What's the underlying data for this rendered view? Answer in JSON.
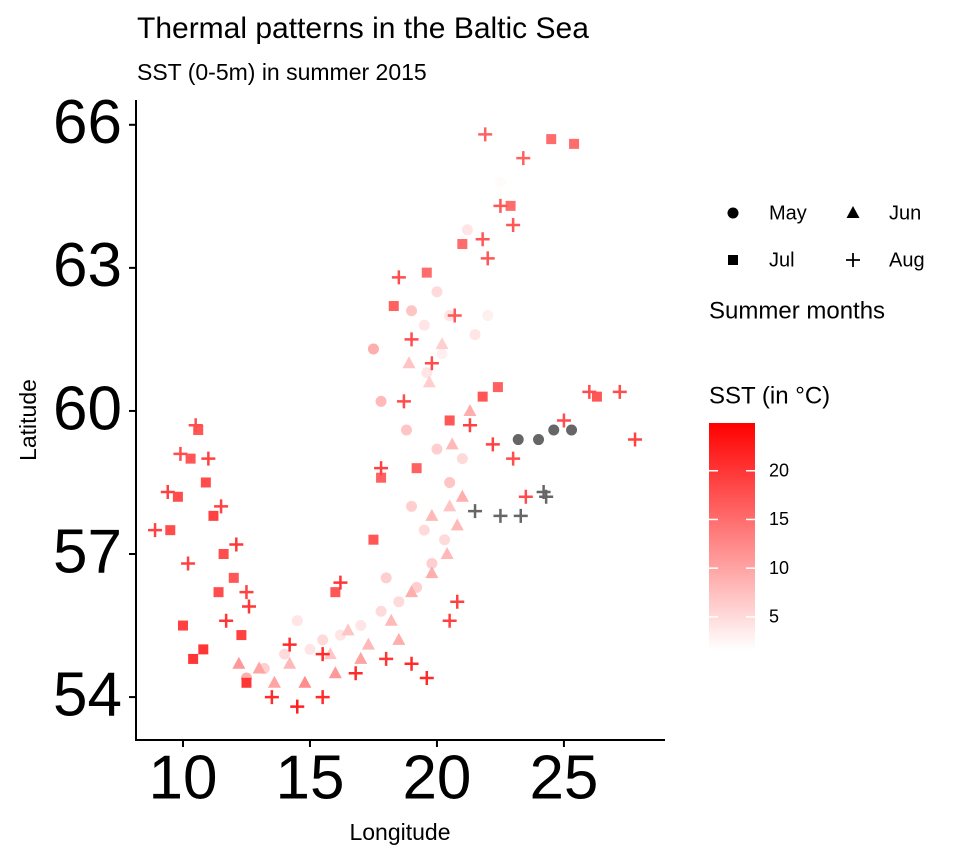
{
  "chart_data": {
    "type": "scatter",
    "title": "Thermal patterns in the Baltic Sea",
    "subtitle": "SST (0-5m) in summer 2015",
    "x_label": "Longitude",
    "y_label": "Latitude",
    "xlim": [
      8.15,
      28.98
    ],
    "ylim": [
      53.1,
      66.52
    ],
    "xticks": [
      10,
      15,
      20,
      25
    ],
    "yticks": [
      54,
      57,
      60,
      63,
      66
    ],
    "shape_legend_title": "Summer months",
    "color_legend_title": "SST (in °C)",
    "colorbar": {
      "limits": [
        1.6,
        24.9
      ],
      "ticks": [
        5,
        10,
        15,
        20
      ],
      "low": "#ffffff",
      "high": "#ff0000"
    },
    "na_color": "#666666",
    "series": [
      {
        "name": "May",
        "shape": "circle",
        "x": [
          12.5,
          13.2,
          14.0,
          15.0,
          15.5,
          16.2,
          17.0,
          17.8,
          18.5,
          19.2,
          19.8,
          20.3,
          19.5,
          19.0,
          20.5,
          21.0,
          20.0,
          18.8,
          17.8,
          19.6,
          20.2,
          21.5,
          22.0,
          23.2,
          24.0,
          24.6,
          25.3,
          22.5,
          21.2,
          20.0,
          19.0,
          17.5,
          19.5,
          20.5,
          18.0,
          14.5
        ],
        "y": [
          54.4,
          54.6,
          54.9,
          55.0,
          55.2,
          55.3,
          55.5,
          55.8,
          56.0,
          56.3,
          56.8,
          57.3,
          57.5,
          58.0,
          58.5,
          59.0,
          59.2,
          59.6,
          60.2,
          60.8,
          61.2,
          61.6,
          62.0,
          59.4,
          59.4,
          59.6,
          59.6,
          64.8,
          63.8,
          62.5,
          62.1,
          61.3,
          61.8,
          62.0,
          56.5,
          55.6
        ],
        "sst": [
          9,
          6,
          5,
          4,
          5,
          4,
          4,
          5,
          5,
          6,
          6,
          5,
          5,
          6,
          7,
          5,
          6,
          7,
          8,
          4,
          3,
          4,
          3,
          null,
          null,
          null,
          null,
          2,
          4,
          5,
          7,
          9,
          4,
          4,
          6,
          4
        ]
      },
      {
        "name": "Jun",
        "shape": "triangle",
        "x": [
          13.0,
          14.2,
          15.8,
          16.5,
          17.3,
          18.2,
          19.0,
          19.8,
          20.4,
          20.8,
          21.0,
          20.6,
          19.7,
          18.9,
          20.2,
          21.3,
          20.5,
          19.8,
          18.5,
          17.0,
          16.0,
          14.8,
          13.6,
          12.2
        ],
        "y": [
          54.6,
          54.7,
          54.9,
          55.4,
          55.1,
          55.6,
          56.2,
          56.6,
          57.0,
          57.6,
          58.2,
          59.3,
          60.6,
          61.0,
          61.4,
          60.0,
          58.0,
          57.8,
          55.2,
          54.8,
          54.5,
          54.3,
          54.3,
          54.7
        ],
        "sst": [
          10,
          8,
          7,
          7,
          8,
          8,
          9,
          9,
          8,
          8,
          9,
          8,
          6,
          7,
          6,
          9,
          7,
          8,
          9,
          10,
          11,
          12,
          10,
          11
        ]
      },
      {
        "name": "Jul",
        "shape": "square",
        "x": [
          9.8,
          10.3,
          10.6,
          10.9,
          11.2,
          11.6,
          12.0,
          9.5,
          10.0,
          10.8,
          11.4,
          12.3,
          10.4,
          16.0,
          17.5,
          19.2,
          20.5,
          21.8,
          22.4,
          24.5,
          25.4,
          26.3,
          18.3,
          19.6,
          21.0,
          22.9,
          17.8,
          12.5
        ],
        "y": [
          58.2,
          59.0,
          59.6,
          58.5,
          57.8,
          57.0,
          56.5,
          57.5,
          55.5,
          55.0,
          56.2,
          55.3,
          54.8,
          56.2,
          57.3,
          58.8,
          59.8,
          60.3,
          60.5,
          65.7,
          65.6,
          60.3,
          62.2,
          62.9,
          63.5,
          64.3,
          58.6,
          54.3
        ],
        "sst": [
          18,
          17,
          17,
          18,
          19,
          18,
          17,
          18,
          19,
          20,
          18,
          19,
          20,
          17,
          17,
          16,
          17,
          17,
          16,
          15,
          15,
          17,
          16,
          15,
          15,
          15,
          16,
          20
        ]
      },
      {
        "name": "Aug",
        "shape": "plus",
        "x": [
          8.9,
          9.4,
          9.9,
          10.5,
          11.0,
          11.5,
          12.1,
          12.5,
          10.2,
          11.7,
          13.5,
          14.5,
          15.5,
          16.8,
          18.0,
          19.0,
          19.6,
          20.5,
          20.8,
          21.3,
          22.2,
          23.0,
          23.5,
          24.2,
          25.0,
          26.0,
          27.2,
          27.8,
          21.5,
          22.5,
          23.3,
          24.3,
          17.8,
          18.7,
          19.8,
          20.7,
          21.8,
          22.5,
          23.4,
          21.9,
          22.0,
          23.0,
          18.5,
          16.2,
          15.5,
          14.2,
          12.6,
          19.0
        ],
        "y": [
          57.5,
          58.3,
          59.1,
          59.7,
          59.0,
          58.0,
          57.2,
          56.2,
          56.8,
          55.6,
          54.0,
          53.8,
          54.0,
          54.5,
          54.8,
          54.7,
          54.4,
          55.6,
          56.0,
          59.7,
          59.3,
          59.0,
          58.2,
          58.3,
          59.8,
          60.4,
          60.4,
          59.4,
          57.9,
          57.8,
          57.8,
          58.2,
          58.8,
          60.2,
          61.0,
          62.0,
          63.6,
          64.3,
          65.3,
          65.8,
          63.2,
          63.9,
          62.8,
          56.4,
          54.9,
          55.1,
          55.9,
          61.5
        ],
        "sst": [
          19,
          19,
          18,
          18,
          19,
          19,
          20,
          19,
          19,
          20,
          21,
          22,
          21,
          21,
          20,
          21,
          21,
          19,
          19,
          19,
          19,
          18,
          18,
          null,
          18,
          18,
          18,
          19,
          null,
          null,
          null,
          null,
          19,
          18,
          18,
          17,
          17,
          17,
          16,
          16,
          17,
          17,
          18,
          20,
          21,
          21,
          20,
          18
        ]
      }
    ]
  }
}
